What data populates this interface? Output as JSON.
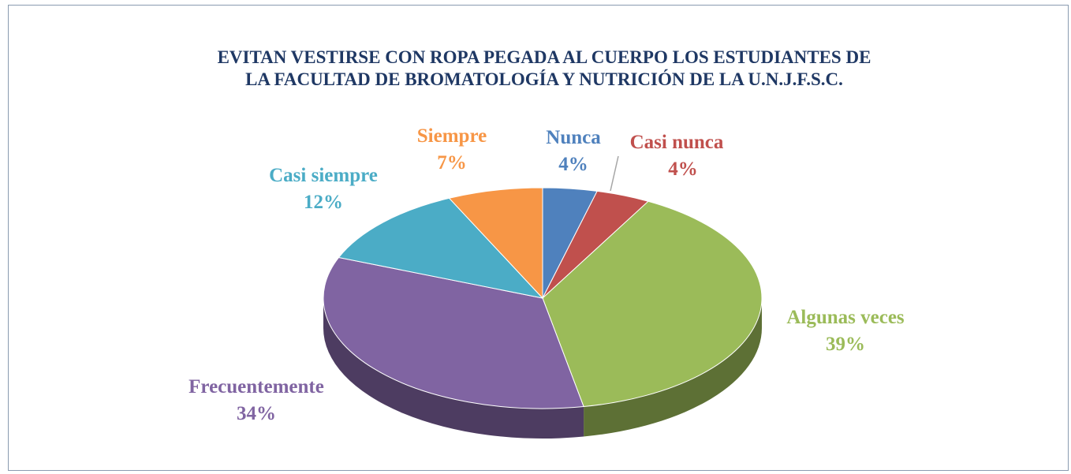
{
  "chart_data": {
    "type": "pie",
    "title": [
      "EVITAN VESTIRSE CON ROPA PEGADA AL CUERPO LOS ESTUDIANTES DE",
      "LA FACULTAD DE BROMATOLOGÍA Y NUTRICIÓN DE LA U.N.J.F.S.C."
    ],
    "categories": [
      "Nunca",
      "Casi nunca",
      "Algunas veces",
      "Frecuentemente",
      "Casi siempre",
      "Siempre"
    ],
    "values": [
      4,
      4,
      39,
      34,
      12,
      7
    ],
    "value_labels": [
      "4%",
      "4%",
      "39%",
      "34%",
      "12%",
      "7%"
    ],
    "colors": [
      "#4f81bd",
      "#c0504d",
      "#9bbb59",
      "#8064a2",
      "#4bacc6",
      "#f79646"
    ]
  }
}
